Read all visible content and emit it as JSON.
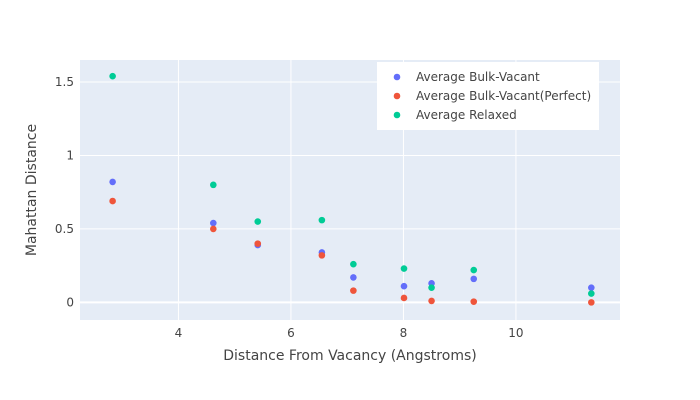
{
  "chart_data": {
    "type": "scatter",
    "title": "",
    "xlabel": "Distance From Vacancy (Angstroms)",
    "ylabel": "Mahattan Distance",
    "xlim": [
      2.25,
      11.85
    ],
    "ylim": [
      -0.12,
      1.65
    ],
    "xticks": [
      4,
      6,
      8,
      10
    ],
    "yticks": [
      0,
      0.5,
      1,
      1.5
    ],
    "grid": true,
    "legend_position": "top-right",
    "x": [
      2.83,
      4.62,
      5.41,
      6.55,
      7.11,
      8.01,
      8.5,
      9.25,
      11.34
    ],
    "series": [
      {
        "name": "Average Bulk-Vacant",
        "color": "#636efa",
        "values": [
          0.82,
          0.54,
          0.39,
          0.34,
          0.17,
          0.11,
          0.13,
          0.16,
          0.1
        ]
      },
      {
        "name": "Average Bulk-Vacant(Perfect)",
        "color": "#ef553b",
        "values": [
          0.69,
          0.5,
          0.4,
          0.32,
          0.08,
          0.03,
          0.01,
          0.005,
          0.0
        ]
      },
      {
        "name": "Average Relaxed",
        "color": "#00cc96",
        "values": [
          1.54,
          0.8,
          0.55,
          0.56,
          0.26,
          0.23,
          0.1,
          0.22,
          0.06
        ]
      }
    ]
  }
}
